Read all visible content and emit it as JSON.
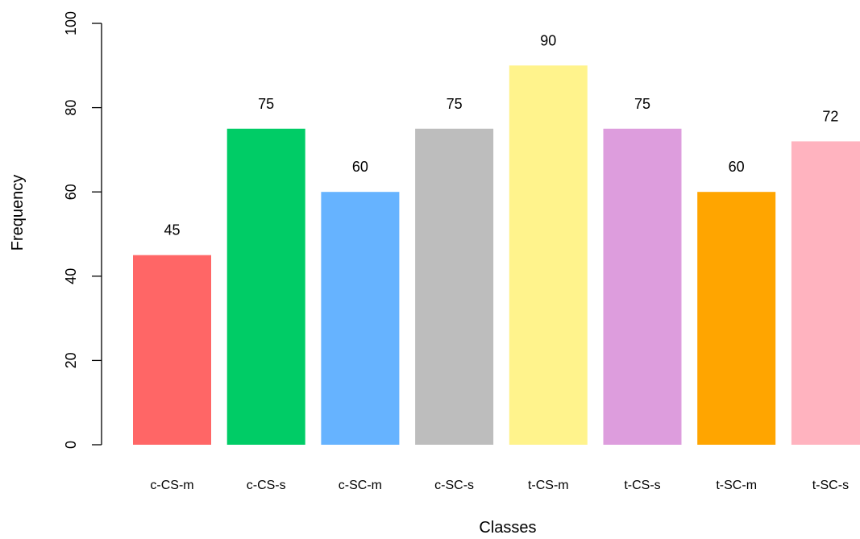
{
  "chart_data": {
    "type": "bar",
    "title": "",
    "xlabel": "Classes",
    "ylabel": "Frequency",
    "ylim": [
      0,
      100
    ],
    "yticks": [
      "0",
      "20",
      "40",
      "60",
      "80",
      "100"
    ],
    "categories": [
      "c-CS-m",
      "c-CS-s",
      "c-SC-m",
      "c-SC-s",
      "t-CS-m",
      "t-CS-s",
      "t-SC-m",
      "t-SC-s"
    ],
    "values": [
      45,
      75,
      60,
      75,
      90,
      75,
      60,
      72
    ],
    "value_labels": [
      "45",
      "75",
      "60",
      "75",
      "90",
      "75",
      "60",
      "72"
    ],
    "colors": [
      "#ff6666",
      "#00cc66",
      "#66b3ff",
      "#bdbdbd",
      "#fff38c",
      "#dd9ddd",
      "#ffa500",
      "#ffb3bf"
    ],
    "grid": false,
    "legend": "none"
  }
}
